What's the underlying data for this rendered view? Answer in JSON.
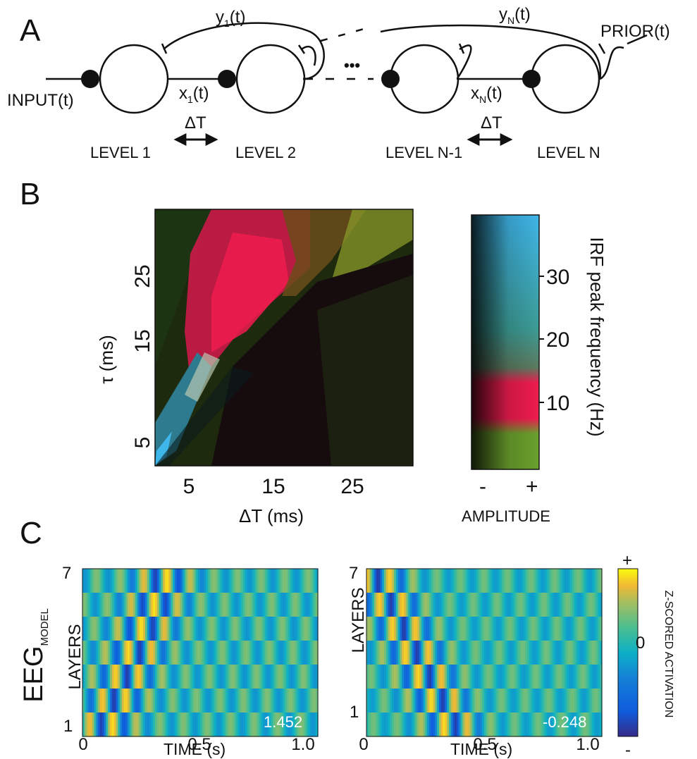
{
  "panel_labels": {
    "a": "A",
    "b": "B",
    "c": "C"
  },
  "panel_a": {
    "input_label": "INPUT(t)",
    "prior_label": "PRIOR(t)",
    "y1_label": "y",
    "y1_sub": "1",
    "yN_label": "y",
    "yN_sub": "N",
    "x1_label": "x",
    "x1_sub": "1",
    "xN_label": "x",
    "xN_sub": "N",
    "t_suffix": "(t)",
    "ellipsis": "•••",
    "delta_label": "ΔT",
    "levels": [
      "LEVEL 1",
      "LEVEL 2",
      "LEVEL N-1",
      "LEVEL N"
    ]
  },
  "panel_b": {
    "heatmap": {
      "xlabel": "ΔT (ms)",
      "ylabel": "τ (ms)",
      "xticks": [
        "5",
        "15",
        "25"
      ],
      "yticks": [
        "5",
        "15",
        "25"
      ]
    },
    "colorbar": {
      "ticks": [
        "10",
        "20",
        "30"
      ],
      "right_label": "IRF peak frequency (Hz)",
      "amp_minus": "-",
      "amp_plus": "+",
      "amp_label": "AMPLITUDE"
    }
  },
  "panel_c": {
    "row_label": "EEG",
    "row_label_sub": "MODEL",
    "left_plot": {
      "ylabel": "LAYERS",
      "ytick_top": "7",
      "ytick_bottom": "1",
      "xticks": [
        "0",
        "0.5",
        "1.0"
      ],
      "xlabel": "TIME (s)",
      "value": "1.452"
    },
    "right_plot": {
      "ylabel": "LAYERS",
      "ytick_top": "7",
      "ytick_bottom": "1",
      "xticks": [
        "0",
        "0.5",
        "1.0"
      ],
      "xlabel": "TIME (s)",
      "value": "-0.248"
    },
    "colorbar": {
      "plus": "+",
      "zero": "0",
      "minus": "-",
      "label": "Z-SCORED ACTIVATION"
    }
  }
}
